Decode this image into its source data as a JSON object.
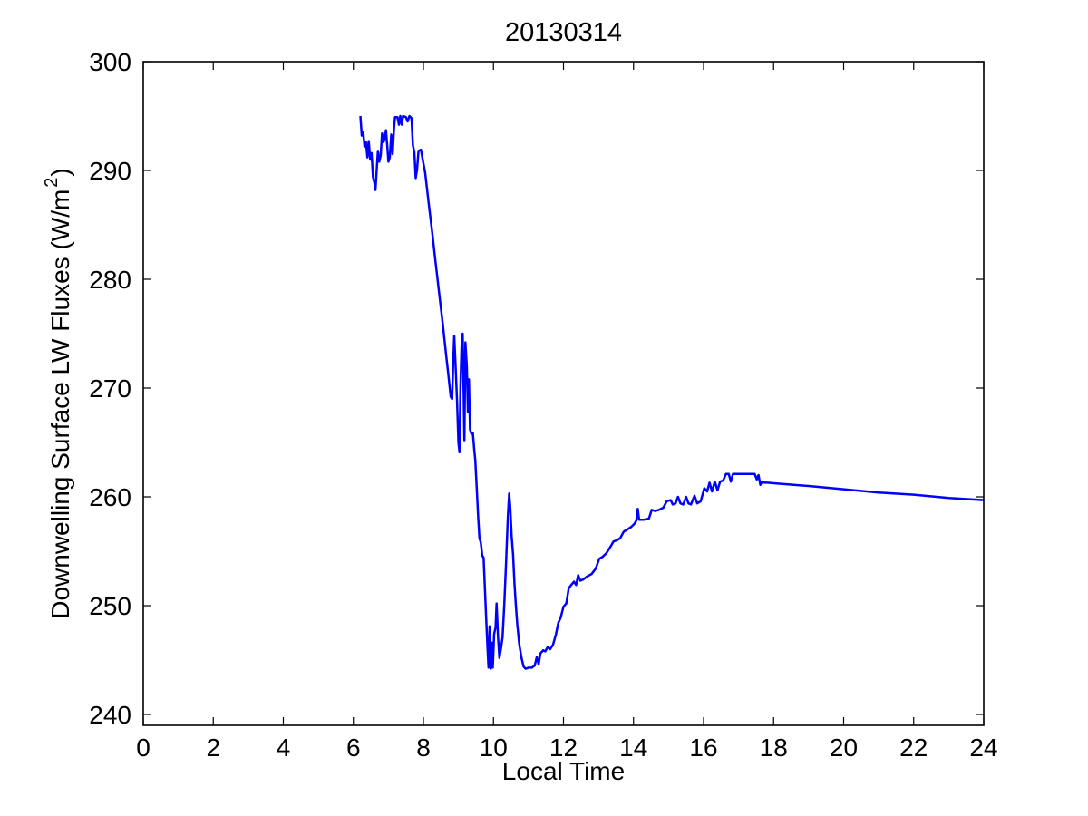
{
  "figure": {
    "background": "#ffffff"
  },
  "chart_data": {
    "type": "line",
    "title": "20130314",
    "xlabel": "Local Time",
    "ylabel": "Downwelling Surface LW Fluxes (W/m^2)",
    "ylabel_parts": [
      "Downwelling Surface LW Fluxes (W/m",
      "2",
      ")"
    ],
    "xlim": [
      0,
      24
    ],
    "ylim": [
      239,
      300
    ],
    "xticks": [
      0,
      2,
      4,
      6,
      8,
      10,
      12,
      14,
      16,
      18,
      20,
      22,
      24
    ],
    "yticks": [
      240,
      250,
      260,
      270,
      280,
      290,
      300
    ],
    "grid": false,
    "legend": "none",
    "line_color": "#0000FF",
    "line_width": 2.5,
    "axis_color": "#000000",
    "series": [
      {
        "name": "downwelling-lw-flux",
        "x": [
          6.2,
          6.24,
          6.28,
          6.32,
          6.36,
          6.4,
          6.44,
          6.48,
          6.52,
          6.56,
          6.6,
          6.63,
          6.67,
          6.7,
          6.74,
          6.78,
          6.82,
          6.86,
          6.9,
          6.93,
          6.97,
          7.0,
          7.04,
          7.08,
          7.12,
          7.16,
          7.19,
          7.26,
          7.3,
          7.34,
          7.38,
          7.42,
          7.5,
          7.55,
          7.6,
          7.66,
          7.7,
          7.74,
          7.78,
          7.82,
          7.86,
          7.93,
          7.98,
          8.05,
          8.15,
          8.25,
          8.35,
          8.45,
          8.55,
          8.65,
          8.72,
          8.78,
          8.82,
          8.85,
          8.88,
          8.92,
          8.96,
          9.0,
          9.03,
          9.06,
          9.09,
          9.12,
          9.15,
          9.17,
          9.2,
          9.24,
          9.27,
          9.3,
          9.33,
          9.37,
          9.41,
          9.45,
          9.48,
          9.52,
          9.56,
          9.6,
          9.64,
          9.68,
          9.72,
          9.76,
          9.8,
          9.83,
          9.86,
          9.89,
          9.92,
          9.95,
          9.98,
          10.02,
          10.06,
          10.09,
          10.13,
          10.17,
          10.21,
          10.26,
          10.31,
          10.36,
          10.41,
          10.45,
          10.48,
          10.52,
          10.56,
          10.6,
          10.64,
          10.68,
          10.74,
          10.8,
          10.86,
          10.92,
          11.0,
          11.1,
          11.18,
          11.24,
          11.29,
          11.34,
          11.42,
          11.48,
          11.55,
          11.62,
          11.7,
          11.78,
          11.85,
          11.92,
          12.0,
          12.08,
          12.15,
          12.22,
          12.3,
          12.36,
          12.42,
          12.48,
          12.56,
          12.68,
          12.8,
          12.92,
          13.02,
          13.12,
          13.22,
          13.32,
          13.43,
          13.52,
          13.62,
          13.72,
          13.82,
          13.92,
          14.02,
          14.08,
          14.12,
          14.16,
          14.3,
          14.44,
          14.52,
          14.62,
          14.72,
          14.85,
          14.95,
          15.06,
          15.12,
          15.2,
          15.27,
          15.34,
          15.42,
          15.5,
          15.57,
          15.64,
          15.74,
          15.82,
          15.92,
          16.02,
          16.1,
          16.17,
          16.24,
          16.32,
          16.4,
          16.47,
          16.56,
          16.64,
          16.72,
          16.78,
          16.84,
          17.0,
          17.25,
          17.46,
          17.52,
          17.57,
          17.62,
          17.67,
          17.74,
          17.82,
          18.2,
          19.0,
          20.0,
          21.0,
          22.0,
          23.0,
          24.0
        ],
        "y": [
          295.0,
          293.2,
          293.5,
          292.2,
          292.6,
          291.2,
          292.7,
          291.0,
          291.6,
          289.4,
          288.9,
          288.2,
          290.2,
          291.8,
          290.8,
          291.4,
          293.4,
          292.6,
          293.0,
          293.7,
          292.2,
          290.8,
          291.2,
          293.3,
          291.5,
          293.9,
          294.9,
          294.9,
          294.2,
          295.0,
          294.2,
          295.0,
          294.9,
          294.5,
          295.0,
          294.8,
          292.3,
          291.7,
          289.3,
          290.1,
          291.8,
          291.9,
          291.0,
          289.8,
          287.0,
          284.3,
          281.5,
          278.7,
          276.0,
          273.0,
          271.0,
          269.2,
          269.0,
          272.2,
          274.8,
          272.0,
          268.8,
          265.0,
          264.1,
          270.2,
          273.8,
          275.0,
          269.5,
          265.2,
          274.2,
          272.0,
          267.8,
          270.8,
          266.2,
          265.8,
          265.9,
          264.4,
          263.4,
          261.0,
          258.3,
          256.2,
          255.8,
          254.6,
          254.4,
          251.2,
          248.3,
          246.1,
          244.3,
          248.1,
          244.2,
          246.6,
          244.3,
          247.4,
          248.0,
          250.2,
          247.1,
          245.2,
          246.0,
          247.1,
          250.1,
          254.0,
          258.1,
          260.3,
          259.0,
          256.4,
          254.7,
          252.1,
          250.0,
          248.3,
          246.4,
          245.2,
          244.4,
          244.2,
          244.3,
          244.3,
          244.5,
          245.3,
          244.6,
          245.6,
          245.9,
          245.8,
          246.2,
          246.0,
          246.4,
          247.3,
          248.4,
          248.9,
          249.9,
          250.2,
          251.6,
          251.9,
          252.2,
          251.9,
          252.8,
          252.3,
          252.4,
          252.7,
          252.9,
          253.4,
          254.3,
          254.5,
          254.8,
          255.3,
          255.9,
          256.0,
          256.2,
          256.8,
          257.0,
          257.2,
          257.5,
          257.8,
          258.9,
          257.9,
          257.9,
          258.0,
          258.8,
          258.7,
          258.8,
          259.0,
          259.6,
          259.7,
          259.3,
          259.4,
          260.0,
          259.4,
          259.3,
          260.0,
          259.4,
          259.3,
          260.1,
          259.4,
          259.6,
          260.8,
          260.5,
          261.3,
          260.5,
          261.4,
          260.6,
          261.4,
          261.5,
          262.1,
          262.1,
          261.4,
          262.1,
          262.1,
          262.1,
          262.1,
          261.6,
          262.0,
          261.1,
          261.4,
          261.3,
          261.3,
          261.2,
          261.0,
          260.7,
          260.4,
          260.2,
          259.9,
          259.7
        ]
      }
    ]
  }
}
